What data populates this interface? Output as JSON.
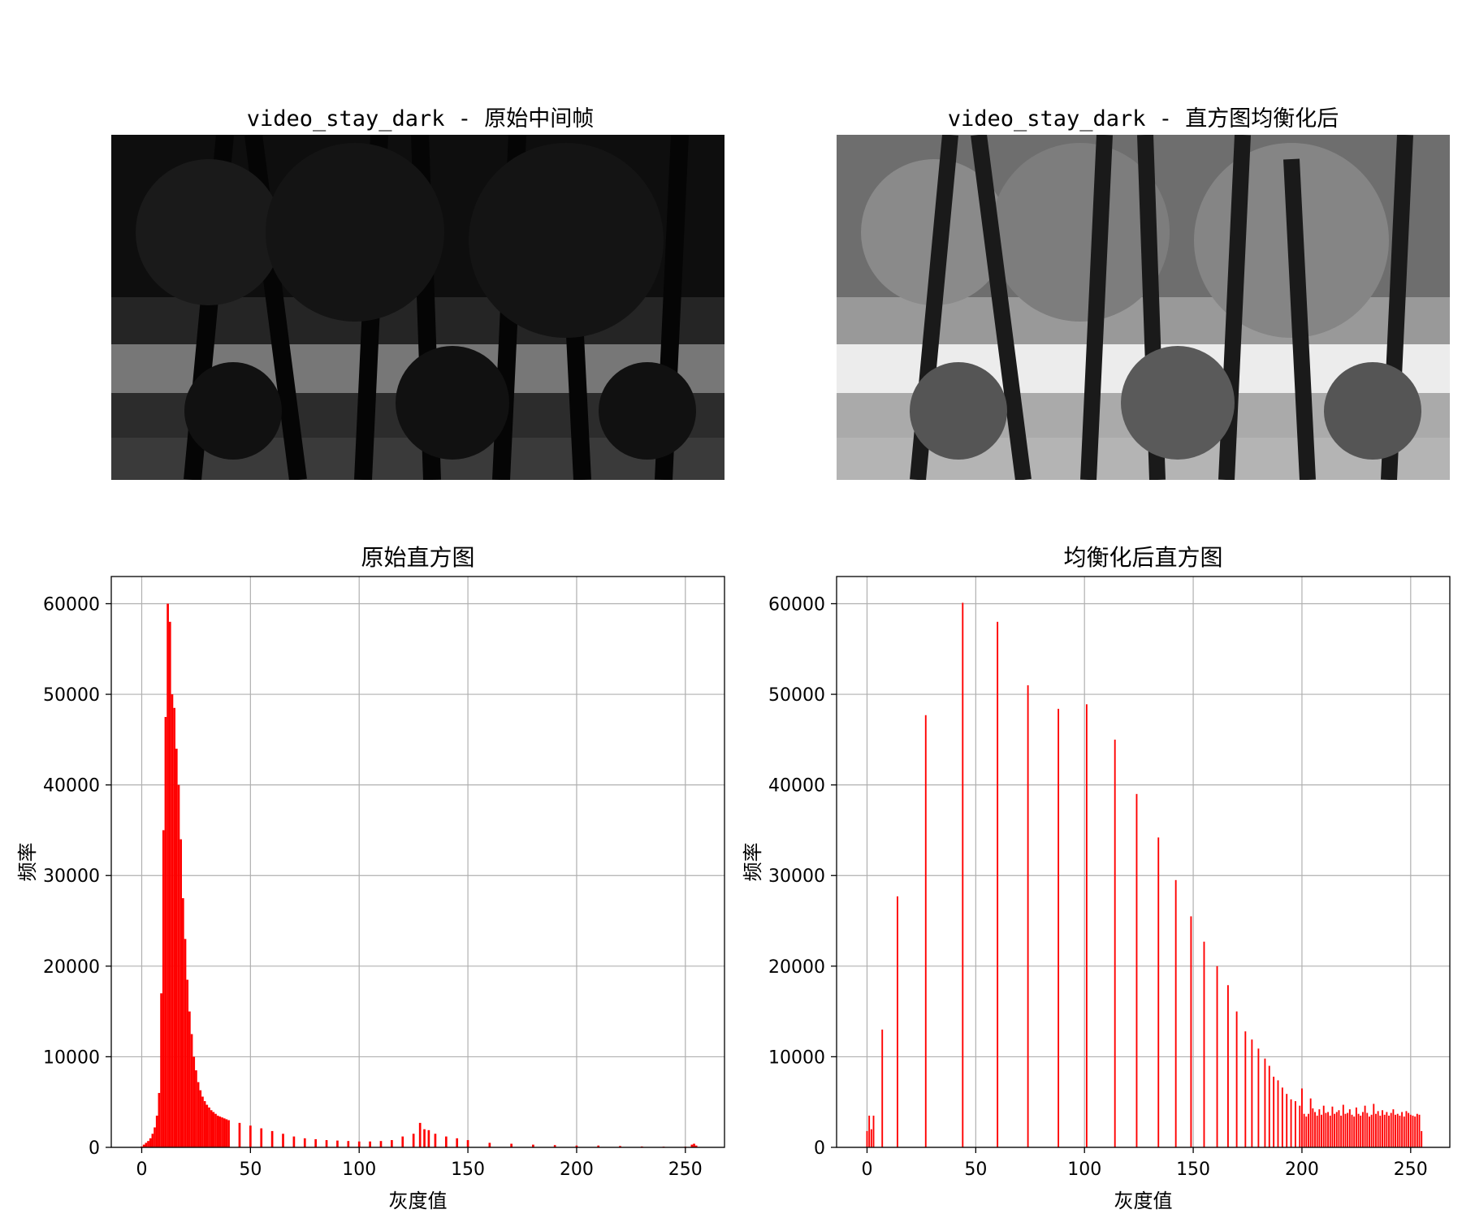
{
  "images": [
    {
      "title": "video_stay_dark - 原始中间帧",
      "style": "dark"
    },
    {
      "title": "video_stay_dark - 直方图均衡化后",
      "style": "equalized"
    }
  ],
  "chart_data": [
    {
      "type": "bar",
      "title": "原始直方图",
      "xlabel": "灰度值",
      "ylabel": "频率",
      "xlim": [
        -14,
        268
      ],
      "ylim": [
        0,
        63000
      ],
      "xticks": [
        0,
        50,
        100,
        150,
        200,
        250
      ],
      "yticks": [
        0,
        10000,
        20000,
        30000,
        40000,
        50000,
        60000
      ],
      "grid": true,
      "color": "#ff0000",
      "bin_width": 1,
      "x": [
        0,
        1,
        2,
        3,
        4,
        5,
        6,
        7,
        8,
        9,
        10,
        11,
        12,
        13,
        14,
        15,
        16,
        17,
        18,
        19,
        20,
        21,
        22,
        23,
        24,
        25,
        26,
        27,
        28,
        29,
        30,
        31,
        32,
        33,
        34,
        35,
        36,
        37,
        38,
        39,
        40,
        45,
        50,
        55,
        60,
        65,
        70,
        75,
        80,
        85,
        90,
        95,
        100,
        105,
        110,
        115,
        120,
        125,
        128,
        130,
        132,
        135,
        140,
        145,
        150,
        160,
        170,
        180,
        190,
        200,
        210,
        220,
        230,
        240,
        250,
        253,
        254,
        255
      ],
      "values": [
        100,
        300,
        500,
        700,
        1000,
        1500,
        2200,
        3500,
        6000,
        17000,
        35000,
        47500,
        60000,
        58000,
        50000,
        48500,
        44000,
        40000,
        34000,
        27500,
        23000,
        18500,
        15000,
        12500,
        10000,
        8500,
        7200,
        6300,
        5600,
        5100,
        4700,
        4400,
        4100,
        3900,
        3700,
        3500,
        3400,
        3300,
        3200,
        3100,
        3000,
        2700,
        2400,
        2100,
        1800,
        1500,
        1200,
        1000,
        900,
        800,
        750,
        700,
        650,
        650,
        700,
        800,
        1200,
        1500,
        2700,
        2000,
        1900,
        1500,
        1200,
        1000,
        800,
        500,
        400,
        300,
        250,
        200,
        200,
        150,
        100,
        80,
        80,
        300,
        400,
        200
      ]
    },
    {
      "type": "bar",
      "title": "均衡化后直方图",
      "xlabel": "灰度值",
      "ylabel": "频率",
      "xlim": [
        -14,
        268
      ],
      "ylim": [
        0,
        63000
      ],
      "xticks": [
        0,
        50,
        100,
        150,
        200,
        250
      ],
      "yticks": [
        0,
        10000,
        20000,
        30000,
        40000,
        50000,
        60000
      ],
      "grid": true,
      "color": "#ff0000",
      "bin_width": 0.7,
      "x": [
        0,
        1,
        2,
        3,
        7,
        14,
        27,
        44,
        60,
        74,
        88,
        101,
        114,
        124,
        134,
        142,
        149,
        155,
        161,
        166,
        170,
        174,
        177,
        180,
        183,
        185,
        187,
        189,
        191,
        193,
        195,
        197,
        199,
        200,
        201,
        202,
        203,
        204,
        205,
        206,
        207,
        208,
        209,
        210,
        211,
        212,
        213,
        214,
        215,
        216,
        217,
        218,
        219,
        220,
        221,
        222,
        223,
        224,
        225,
        226,
        227,
        228,
        229,
        230,
        231,
        232,
        233,
        234,
        235,
        236,
        237,
        238,
        239,
        240,
        241,
        242,
        243,
        244,
        245,
        246,
        247,
        248,
        249,
        250,
        251,
        252,
        253,
        254,
        255
      ],
      "values": [
        1800,
        3500,
        2000,
        3500,
        13000,
        27700,
        47700,
        60100,
        58000,
        51000,
        48400,
        48900,
        45000,
        39000,
        34200,
        29500,
        25500,
        22700,
        20000,
        17900,
        15000,
        12800,
        11900,
        10900,
        9800,
        9000,
        7800,
        7400,
        6600,
        5900,
        5300,
        5100,
        4600,
        6500,
        3700,
        3400,
        3700,
        5400,
        4300,
        3900,
        3500,
        4200,
        3600,
        4600,
        3800,
        3900,
        3500,
        4500,
        3700,
        3900,
        4100,
        3500,
        4700,
        3700,
        3800,
        4200,
        3600,
        3400,
        4400,
        3700,
        3500,
        3900,
        4600,
        3800,
        3400,
        3600,
        4800,
        3700,
        4000,
        3500,
        4100,
        3600,
        3900,
        3500,
        3800,
        4200,
        3600,
        3700,
        3500,
        3900,
        3400,
        4000,
        3800,
        3600,
        3500,
        3400,
        3700,
        3600,
        1800
      ]
    }
  ]
}
